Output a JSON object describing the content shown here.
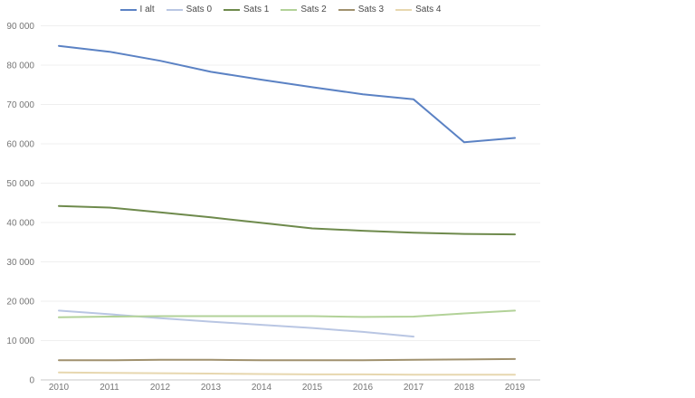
{
  "chart_data": {
    "type": "line",
    "categories": [
      "2010",
      "2011",
      "2012",
      "2013",
      "2014",
      "2015",
      "2016",
      "2017",
      "2018",
      "2019"
    ],
    "series": [
      {
        "name": "I alt",
        "color": "#5b82c4",
        "values": [
          84900,
          83400,
          81100,
          78300,
          76300,
          74400,
          72600,
          71300,
          60400,
          61500
        ]
      },
      {
        "name": "Sats 0",
        "color": "#b9c6e3",
        "values": [
          17600,
          16700,
          15700,
          14800,
          14000,
          13200,
          12200,
          11000,
          null,
          null
        ]
      },
      {
        "name": "Sats 1",
        "color": "#6e8a4c",
        "values": [
          44200,
          43800,
          42600,
          41300,
          39900,
          38500,
          37900,
          37400,
          37100,
          37000
        ]
      },
      {
        "name": "Sats 2",
        "color": "#b2d298",
        "values": [
          15900,
          16100,
          16200,
          16200,
          16200,
          16200,
          16000,
          16100,
          16900,
          17600
        ]
      },
      {
        "name": "Sats 3",
        "color": "#a0916e",
        "values": [
          5000,
          5000,
          5100,
          5100,
          5000,
          5000,
          5000,
          5100,
          5200,
          5300
        ]
      },
      {
        "name": "Sats 4",
        "color": "#e7d7af",
        "values": [
          1900,
          1800,
          1700,
          1600,
          1500,
          1400,
          1400,
          1300,
          1300,
          1300
        ]
      }
    ],
    "title": "",
    "xlabel": "",
    "ylabel": "",
    "ylim": [
      0,
      90000
    ],
    "y_tick_step": 10000,
    "y_tick_labels": [
      "0",
      "10 000",
      "20 000",
      "30 000",
      "40 000",
      "50 000",
      "60 000",
      "70 000",
      "80 000",
      "90 000"
    ],
    "grid": true,
    "legend_position": "top",
    "grid_color": "#efefef",
    "axis_color": "#c9c9c9",
    "tick_label_color": "#757575",
    "legend_text_color": "#494949"
  }
}
